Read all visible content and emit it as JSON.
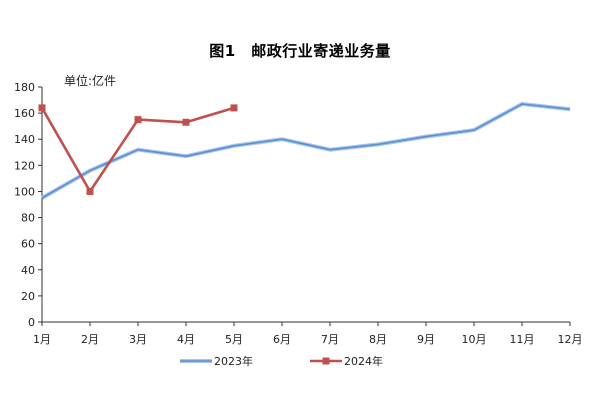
{
  "chart_data": {
    "type": "line",
    "title": "图1　邮政行业寄递业务量",
    "unit_label": "单位:亿件",
    "categories": [
      "1月",
      "2月",
      "3月",
      "4月",
      "5月",
      "6月",
      "7月",
      "8月",
      "9月",
      "10月",
      "11月",
      "12月"
    ],
    "y_ticks": [
      "0",
      "20",
      "40",
      "60",
      "80",
      "100",
      "120",
      "140",
      "160",
      "180"
    ],
    "ylim": [
      0,
      180
    ],
    "grid": false,
    "legend_position": "bottom",
    "series": [
      {
        "name": "2023年",
        "color": "#5b8fd4",
        "marker": "none",
        "values": [
          95,
          116,
          132,
          127,
          135,
          140,
          132,
          136,
          142,
          147,
          167,
          163
        ]
      },
      {
        "name": "2024年",
        "color": "#c0504d",
        "marker": "square",
        "values": [
          164,
          100,
          155,
          153,
          164,
          null,
          null,
          null,
          null,
          null,
          null,
          null
        ]
      }
    ]
  }
}
